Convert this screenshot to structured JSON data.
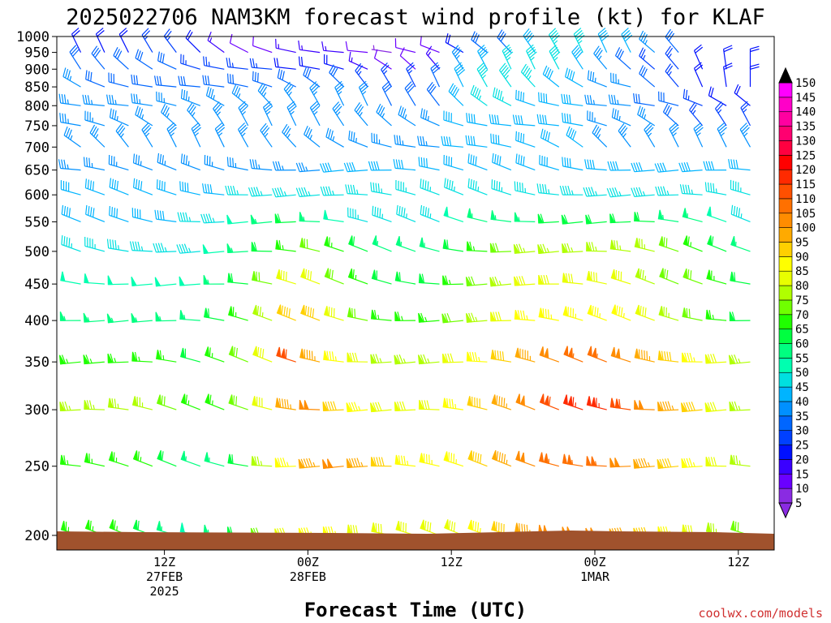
{
  "chart_data": {
    "type": "wind-barb-time-height",
    "title": "2025022706 NAM3KM forecast wind profile (kt) for KLAF",
    "xlabel": "Forecast Time (UTC)",
    "credit": "coolwx.com/models",
    "y_axis": {
      "scale": "log",
      "range": [
        1000,
        200
      ],
      "ticks": [
        "200",
        "250",
        "300",
        "350",
        "400",
        "450",
        "500",
        "550",
        "600",
        "650",
        "700",
        "750",
        "800",
        "850",
        "900",
        "950",
        "1000"
      ]
    },
    "x_axis": {
      "range": [
        3,
        63
      ],
      "range_units": "hours since 2025-02-27 00Z",
      "ticks": [
        {
          "hour": 12,
          "line1": "12Z",
          "line2": "27FEB",
          "line3": "2025"
        },
        {
          "hour": 24,
          "line1": "00Z",
          "line2": "28FEB",
          "line3": ""
        },
        {
          "hour": 36,
          "line1": "12Z",
          "line2": "",
          "line3": ""
        },
        {
          "hour": 48,
          "line1": "00Z",
          "line2": "1MAR",
          "line3": ""
        },
        {
          "hour": 60,
          "line1": "12Z",
          "line2": "",
          "line3": ""
        }
      ]
    },
    "colorbar": {
      "levels": [
        5,
        10,
        15,
        20,
        25,
        30,
        35,
        40,
        45,
        50,
        55,
        60,
        65,
        70,
        75,
        80,
        85,
        90,
        95,
        100,
        105,
        110,
        115,
        120,
        125,
        130,
        135,
        140,
        145,
        150
      ],
      "colors": [
        "#8a2be2",
        "#6a00ff",
        "#3a00ff",
        "#0010ff",
        "#0040ff",
        "#0066ff",
        "#0090ff",
        "#00b4ff",
        "#00e0e0",
        "#00ffb0",
        "#00ff80",
        "#00ff40",
        "#20ff00",
        "#70ff00",
        "#b0ff00",
        "#e8ff00",
        "#ffff00",
        "#ffd000",
        "#ffaa00",
        "#ff8c00",
        "#ff7000",
        "#ff5000",
        "#ff2a00",
        "#ff0000",
        "#ff0040",
        "#ff0070",
        "#ff00a0",
        "#ff00c8",
        "#ff00ff",
        "#ff40ff"
      ]
    },
    "wind_columns": {
      "hours": [
        3,
        5,
        7,
        9,
        11,
        13,
        15,
        17,
        19,
        21,
        23,
        25,
        27,
        29,
        31,
        33,
        35,
        37,
        39,
        41,
        43,
        45,
        47,
        49,
        51,
        53,
        55,
        57,
        59,
        61,
        63
      ],
      "levels": [
        {
          "p": 1000,
          "speeds_kt": [
            null,
            null,
            null,
            null,
            null,
            null,
            null,
            null,
            null,
            null,
            null,
            null,
            null,
            null,
            null,
            null,
            null,
            null,
            null,
            null,
            null,
            null,
            null,
            null,
            null,
            null,
            null,
            null,
            null,
            null,
            null
          ]
        },
        {
          "p": 950,
          "speeds_kt": [
            20,
            20,
            20,
            20,
            25,
            25,
            20,
            15,
            10,
            10,
            15,
            15,
            15,
            10,
            5,
            10,
            10,
            20,
            30,
            30,
            40,
            45,
            45,
            40,
            40,
            35,
            30,
            null,
            null,
            null,
            null
          ]
        },
        {
          "p": 900,
          "speeds_kt": [
            30,
            30,
            30,
            30,
            30,
            30,
            25,
            25,
            25,
            25,
            20,
            20,
            20,
            15,
            10,
            10,
            15,
            35,
            40,
            45,
            45,
            45,
            40,
            35,
            30,
            25,
            25,
            20,
            20,
            20,
            20
          ]
        },
        {
          "p": 850,
          "speeds_kt": [
            35,
            35,
            30,
            30,
            30,
            30,
            30,
            30,
            30,
            30,
            30,
            30,
            30,
            25,
            25,
            25,
            30,
            40,
            45,
            45,
            45,
            40,
            40,
            35,
            35,
            30,
            25,
            20,
            20,
            20,
            20
          ]
        },
        {
          "p": 800,
          "speeds_kt": [
            35,
            35,
            35,
            35,
            35,
            35,
            35,
            35,
            35,
            35,
            35,
            35,
            35,
            35,
            30,
            30,
            30,
            40,
            45,
            45,
            40,
            40,
            40,
            35,
            35,
            30,
            30,
            25,
            20,
            20,
            20
          ]
        },
        {
          "p": 750,
          "speeds_kt": [
            35,
            35,
            35,
            35,
            35,
            35,
            35,
            35,
            35,
            35,
            35,
            35,
            35,
            35,
            35,
            35,
            35,
            40,
            40,
            40,
            40,
            40,
            40,
            35,
            35,
            35,
            30,
            25,
            25,
            25,
            25
          ]
        },
        {
          "p": 700,
          "speeds_kt": [
            35,
            35,
            35,
            35,
            35,
            35,
            35,
            35,
            35,
            35,
            35,
            35,
            35,
            35,
            35,
            35,
            35,
            40,
            40,
            40,
            40,
            40,
            40,
            35,
            35,
            35,
            35,
            35,
            35,
            35,
            35
          ]
        },
        {
          "p": 650,
          "speeds_kt": [
            35,
            35,
            35,
            35,
            35,
            35,
            35,
            35,
            35,
            35,
            35,
            35,
            40,
            40,
            40,
            40,
            40,
            40,
            40,
            40,
            40,
            40,
            40,
            40,
            40,
            40,
            40,
            40,
            40,
            40,
            40
          ]
        },
        {
          "p": 600,
          "speeds_kt": [
            40,
            40,
            40,
            40,
            40,
            40,
            40,
            40,
            45,
            45,
            45,
            45,
            45,
            45,
            45,
            45,
            45,
            45,
            45,
            45,
            45,
            45,
            45,
            45,
            45,
            45,
            45,
            45,
            45,
            45,
            45
          ]
        },
        {
          "p": 550,
          "speeds_kt": [
            40,
            40,
            40,
            40,
            40,
            40,
            45,
            45,
            50,
            55,
            60,
            55,
            50,
            45,
            45,
            45,
            45,
            50,
            55,
            55,
            55,
            60,
            60,
            60,
            60,
            60,
            55,
            55,
            50,
            45,
            45
          ]
        },
        {
          "p": 500,
          "speeds_kt": [
            45,
            45,
            45,
            45,
            45,
            45,
            45,
            50,
            55,
            60,
            65,
            70,
            65,
            60,
            55,
            55,
            55,
            60,
            65,
            70,
            75,
            75,
            75,
            75,
            75,
            75,
            70,
            65,
            60,
            55,
            55
          ]
        },
        {
          "p": 450,
          "speeds_kt": [
            50,
            50,
            50,
            50,
            50,
            50,
            50,
            55,
            60,
            70,
            80,
            80,
            70,
            65,
            60,
            60,
            60,
            65,
            70,
            75,
            80,
            80,
            80,
            80,
            80,
            75,
            70,
            70,
            65,
            60,
            60
          ]
        },
        {
          "p": 400,
          "speeds_kt": [
            55,
            55,
            55,
            55,
            55,
            55,
            55,
            60,
            65,
            75,
            90,
            90,
            80,
            70,
            65,
            65,
            65,
            70,
            75,
            80,
            85,
            85,
            85,
            85,
            85,
            80,
            75,
            70,
            65,
            60,
            60
          ]
        },
        {
          "p": 350,
          "speeds_kt": [
            65,
            65,
            65,
            65,
            65,
            65,
            60,
            65,
            70,
            80,
            110,
            95,
            85,
            80,
            75,
            75,
            75,
            80,
            85,
            90,
            95,
            100,
            105,
            105,
            100,
            95,
            90,
            85,
            80,
            75,
            70
          ]
        },
        {
          "p": 300,
          "speeds_kt": [
            75,
            75,
            75,
            75,
            75,
            70,
            65,
            65,
            70,
            80,
            95,
            100,
            90,
            85,
            80,
            80,
            80,
            85,
            90,
            95,
            100,
            110,
            115,
            115,
            110,
            100,
            95,
            90,
            80,
            75,
            70
          ]
        },
        {
          "p": 250,
          "speeds_kt": [
            65,
            65,
            65,
            65,
            65,
            60,
            55,
            55,
            60,
            75,
            85,
            95,
            100,
            95,
            90,
            85,
            85,
            85,
            90,
            95,
            100,
            105,
            105,
            105,
            100,
            95,
            90,
            85,
            80,
            75,
            70
          ]
        },
        {
          "p": 200,
          "speeds_kt": [
            65,
            65,
            65,
            65,
            60,
            55,
            50,
            55,
            60,
            70,
            80,
            85,
            85,
            80,
            80,
            80,
            80,
            80,
            85,
            90,
            95,
            100,
            100,
            100,
            95,
            90,
            85,
            80,
            75,
            70,
            70
          ]
        }
      ]
    },
    "terrain_color": "#a0522d",
    "grid": false,
    "legend_placement": "right colorbar"
  }
}
